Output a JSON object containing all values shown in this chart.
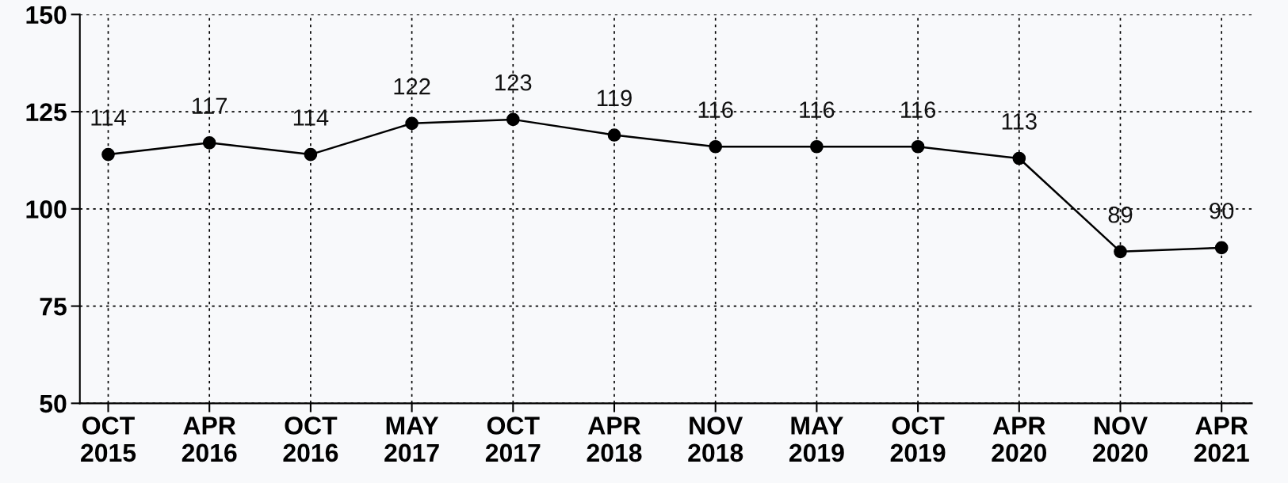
{
  "chart_data": {
    "type": "line",
    "categories": [
      "OCT\n2015",
      "APR\n2016",
      "OCT\n2016",
      "MAY\n2017",
      "OCT\n2017",
      "APR\n2018",
      "NOV\n2018",
      "MAY\n2019",
      "OCT\n2019",
      "APR\n2020",
      "NOV\n2020",
      "APR\n2021"
    ],
    "series": [
      {
        "color": "#000000",
        "values": [
          114,
          117,
          114,
          122,
          123,
          119,
          116,
          116,
          116,
          113,
          89,
          90
        ]
      }
    ],
    "ylim": [
      50,
      150
    ],
    "yticks": [
      50,
      75,
      100,
      125,
      150
    ],
    "grid": true,
    "marker": "circle",
    "line_style": "solid",
    "data_labels": true
  }
}
